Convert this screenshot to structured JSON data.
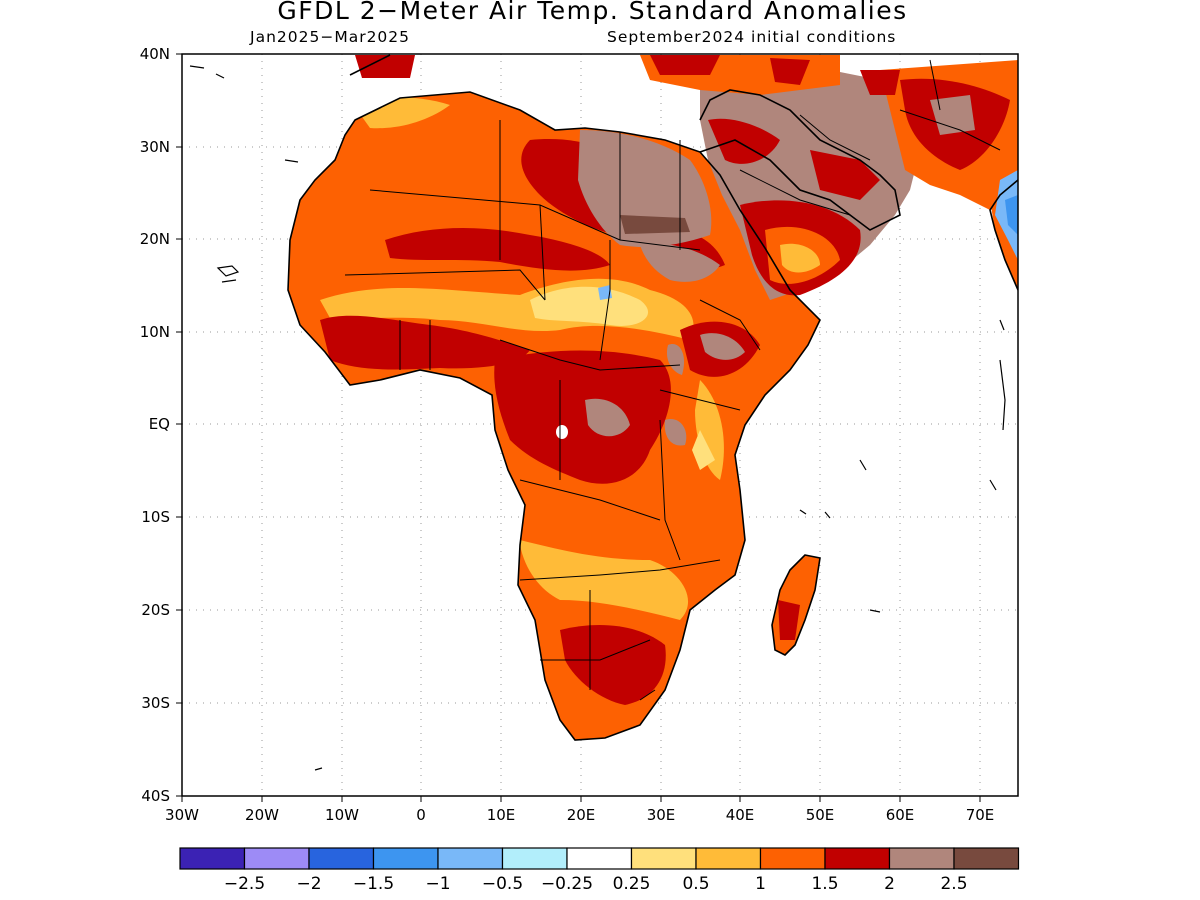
{
  "title": "GFDL 2−Meter Air Temp. Standard Anomalies",
  "subtitle_left": "Jan2025−Mar2025",
  "subtitle_right": "September2024 initial conditions",
  "lon_labels": [
    "30W",
    "20W",
    "10W",
    "0",
    "10E",
    "20E",
    "30E",
    "40E",
    "50E",
    "60E",
    "70E"
  ],
  "lat_labels": [
    "40N",
    "30N",
    "20N",
    "10N",
    "EQ",
    "10S",
    "20S",
    "30S",
    "40S"
  ],
  "colorbar": {
    "colors": [
      "#3b22b4",
      "#9d8bf6",
      "#2864de",
      "#3d95f0",
      "#79b8f8",
      "#b2eefb",
      "#ffffff",
      "#ffe07c",
      "#ffbb38",
      "#fd6102",
      "#c10000",
      "#b0867c",
      "#784a3e"
    ],
    "labels": [
      "−2.5",
      "−2",
      "−1.5",
      "−1",
      "−0.5",
      "−0.25",
      "0.25",
      "0.5",
      "1",
      "1.5",
      "2",
      "2.5"
    ]
  },
  "color_scale": {
    "light_yellow": "#ffe07c",
    "yellow_orange": "#ffbb38",
    "orange": "#fd6102",
    "red": "#c10000",
    "brown": "#b0867c",
    "light_blue": "#79b8f8",
    "blue": "#3d95f0"
  }
}
